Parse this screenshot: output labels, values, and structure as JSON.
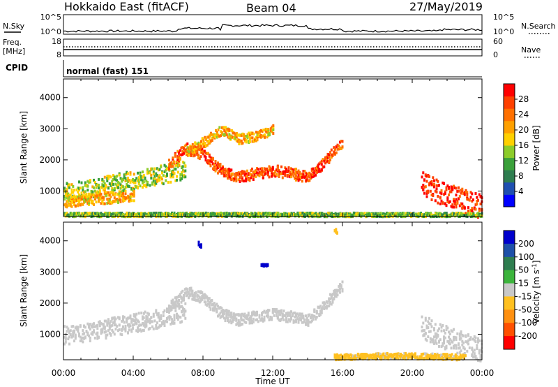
{
  "header": {
    "station": "Hokkaido East (fitACF)",
    "beam": "Beam 04",
    "date": "27/May/2019"
  },
  "noise_panel": {
    "left_label": "N.Sky",
    "right_label": "N.Search",
    "left_ticks": [
      "10^5",
      "10^0"
    ],
    "right_ticks": [
      "10^5",
      "10^0"
    ]
  },
  "freq_panel": {
    "left_label_1": "Freq.",
    "left_label_2": "[MHz]",
    "right_label": "Nave",
    "left_ticks": [
      "18",
      "8"
    ],
    "right_ticks": [
      "60",
      "0"
    ]
  },
  "cpid_panel": {
    "label": "CPID",
    "text": "normal (fast) 151"
  },
  "colors": {
    "power": [
      "#0000ff",
      "#1f4fb0",
      "#2e7d4f",
      "#3aa03a",
      "#8ccc2a",
      "#ffd000",
      "#ffa000",
      "#ff7000",
      "#ff4000",
      "#ff0000"
    ],
    "velocity": [
      "#0000cc",
      "#1e50a8",
      "#2e7d4f",
      "#3cb43c",
      "#c8c8c8",
      "#ffc020",
      "#ff9010",
      "#ff5000",
      "#ff0000"
    ]
  },
  "chart_data": [
    {
      "type": "heatmap",
      "quantity": "power",
      "ylabel": "Slant Range [km]",
      "xlabel": "",
      "x_ticks": [
        "00:00",
        "04:00",
        "08:00",
        "12:00",
        "16:00",
        "20:00",
        "00:00"
      ],
      "y_ticks": [
        "1000",
        "2000",
        "3000",
        "4000"
      ],
      "ylim": [
        180,
        4600
      ],
      "xlim_hours": [
        0,
        24
      ],
      "colorbar": {
        "label": "Power [dB]",
        "ticks": [
          "4",
          "8",
          "12",
          "16",
          "20",
          "24",
          "28"
        ],
        "range": [
          0,
          30
        ]
      },
      "regions": [
        {
          "x": [
            0,
            1,
            2,
            3,
            4,
            5,
            6,
            7
          ],
          "y": [
            1000,
            1050,
            1150,
            1300,
            1400,
            1500,
            1600,
            1750
          ],
          "spread": 300,
          "value": 14
        },
        {
          "x": [
            0,
            1,
            2,
            3,
            4
          ],
          "y": [
            700,
            750,
            800,
            850,
            900
          ],
          "spread": 180,
          "value": 19
        },
        {
          "x": [
            6,
            7,
            8,
            9,
            10,
            11,
            12,
            13,
            14,
            15,
            16
          ],
          "y": [
            1900,
            2400,
            2200,
            1700,
            1500,
            1600,
            1700,
            1600,
            1500,
            2000,
            2600
          ],
          "spread": 180,
          "value": 25
        },
        {
          "x": [
            7,
            8,
            9,
            10,
            11,
            12
          ],
          "y": [
            2300,
            2600,
            3000,
            2700,
            2800,
            3000
          ],
          "spread": 160,
          "value": 19
        },
        {
          "x": [
            20.5,
            21.5,
            22.5,
            23.5,
            24
          ],
          "y": [
            1300,
            1000,
            800,
            600,
            550
          ],
          "spread": 380,
          "value": 27
        },
        {
          "x": [
            0,
            4,
            8,
            12,
            16,
            20,
            24
          ],
          "y": [
            280,
            280,
            280,
            280,
            280,
            280,
            280
          ],
          "spread": 60,
          "value": 12
        }
      ]
    },
    {
      "type": "heatmap",
      "quantity": "velocity",
      "ylabel": "Slant Range [km]",
      "xlabel": "Time UT",
      "x_ticks": [
        "00:00",
        "04:00",
        "08:00",
        "12:00",
        "16:00",
        "20:00",
        "00:00"
      ],
      "y_ticks": [
        "1000",
        "2000",
        "3000",
        "4000"
      ],
      "ylim": [
        180,
        4600
      ],
      "xlim_hours": [
        0,
        24
      ],
      "colorbar": {
        "label": "Velocity [m s^-1]",
        "ticks": [
          "200",
          "100",
          "50",
          "15",
          "-15",
          "-50",
          "-100",
          "-200"
        ],
        "range": [
          -250,
          250
        ]
      },
      "regions": [
        {
          "x": [
            0,
            1,
            2,
            3,
            4,
            5,
            6,
            7
          ],
          "y": [
            1000,
            1050,
            1150,
            1300,
            1400,
            1500,
            1600,
            1750
          ],
          "spread": 300,
          "value": 0
        },
        {
          "x": [
            6,
            7,
            8,
            9,
            10,
            11,
            12,
            13,
            14,
            15,
            16
          ],
          "y": [
            1900,
            2400,
            2200,
            1700,
            1500,
            1600,
            1700,
            1600,
            1500,
            2000,
            2600
          ],
          "spread": 180,
          "value": 0
        },
        {
          "x": [
            20.5,
            21.5,
            22.5,
            23.5,
            24
          ],
          "y": [
            1300,
            1000,
            800,
            600,
            550
          ],
          "spread": 380,
          "value": 5
        },
        {
          "x": [
            15.5,
            17,
            18.5,
            20,
            21.5,
            23
          ],
          "y": [
            300,
            320,
            340,
            340,
            320,
            300
          ],
          "spread": 90,
          "value": -40
        },
        {
          "x": [
            7.7,
            7.9
          ],
          "y": [
            3950,
            3850
          ],
          "spread": 60,
          "value": 220
        },
        {
          "x": [
            11.3,
            11.7
          ],
          "y": [
            3300,
            3250
          ],
          "spread": 50,
          "value": 220
        },
        {
          "x": [
            15.5,
            15.7
          ],
          "y": [
            4400,
            4300
          ],
          "spread": 60,
          "value": -60
        }
      ]
    }
  ]
}
